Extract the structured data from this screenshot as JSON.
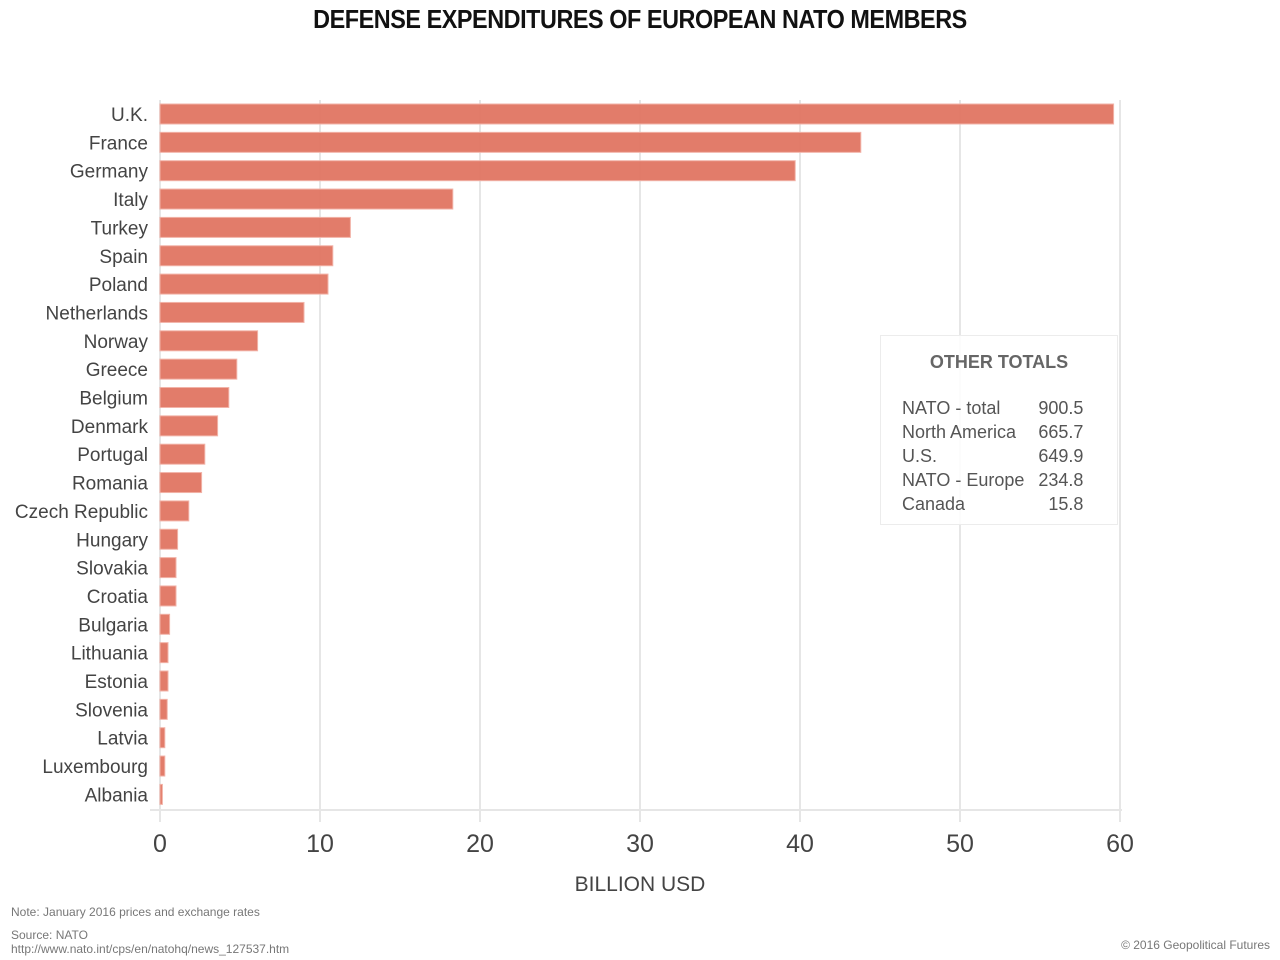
{
  "chart_data": {
    "type": "bar",
    "orientation": "horizontal",
    "title": "DEFENSE EXPENDITURES OF EUROPEAN NATO MEMBERS",
    "xlabel": "BILLION USD",
    "ylabel": "",
    "xlim": [
      0,
      60
    ],
    "xticks": [
      0,
      10,
      20,
      30,
      40,
      50,
      60
    ],
    "grid": true,
    "bar_color": "#e07562",
    "categories": [
      "U.K.",
      "France",
      "Germany",
      "Italy",
      "Turkey",
      "Spain",
      "Poland",
      "Netherlands",
      "Norway",
      "Greece",
      "Belgium",
      "Denmark",
      "Portugal",
      "Romania",
      "Czech Republic",
      "Hungary",
      "Slovakia",
      "Croatia",
      "Bulgaria",
      "Lithuania",
      "Estonia",
      "Slovenia",
      "Latvia",
      "Luxembourg",
      "Albania"
    ],
    "values": [
      59.6,
      43.8,
      39.7,
      18.3,
      11.9,
      10.8,
      10.5,
      9.0,
      6.1,
      4.8,
      4.3,
      3.6,
      2.8,
      2.6,
      1.8,
      1.1,
      1.0,
      1.0,
      0.6,
      0.5,
      0.5,
      0.45,
      0.3,
      0.3,
      0.15
    ],
    "annotation": {
      "title": "OTHER TOTALS",
      "rows": [
        {
          "label": "NATO - total",
          "value": "900.5"
        },
        {
          "label": "North America",
          "value": "665.7"
        },
        {
          "label": "U.S.",
          "value": "649.9"
        },
        {
          "label": "NATO - Europe",
          "value": "234.8"
        },
        {
          "label": "Canada",
          "value": "15.8"
        }
      ]
    }
  },
  "footer": {
    "note": "Note: January 2016 prices and exchange rates",
    "source": "Source: NATO",
    "source_url": "http://www.nato.int/cps/en/natohq/news_127537.htm",
    "copyright": "© 2016 Geopolitical Futures"
  }
}
